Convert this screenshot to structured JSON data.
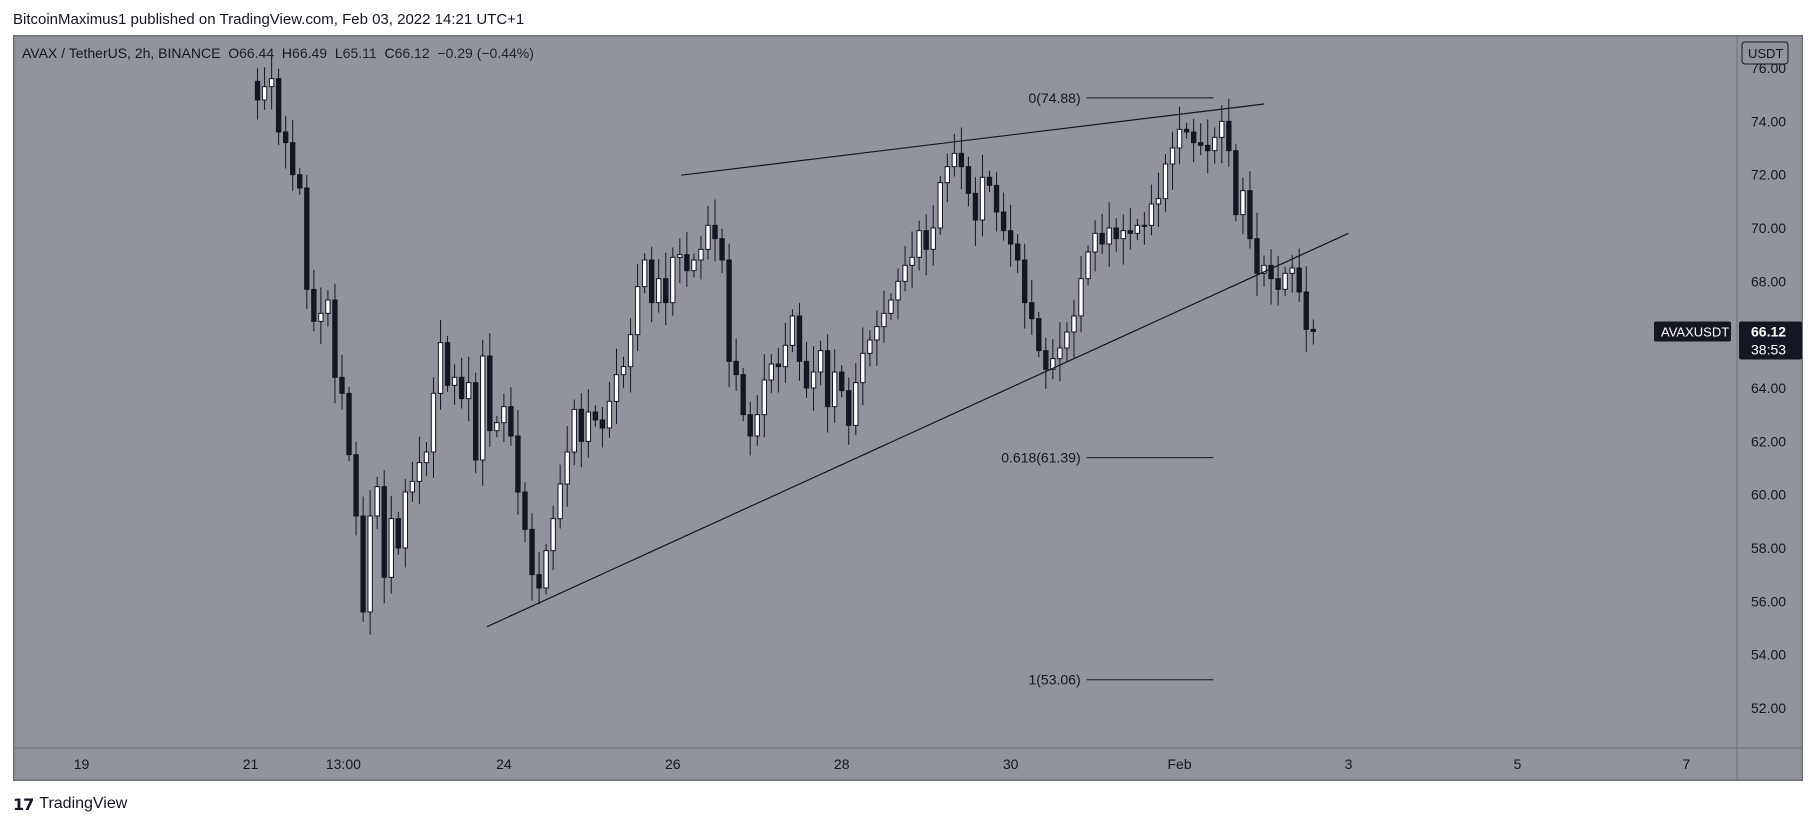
{
  "header": {
    "publisher_line": "BitcoinMaximus1 published on TradingView.com, Feb 03, 2022 14:21 UTC+1"
  },
  "legend": {
    "symbol": "AVAX / TetherUS, 2h, BINANCE",
    "open_label": "O",
    "open": "66.44",
    "high_label": "H",
    "high": "66.49",
    "low_label": "L",
    "low": "65.11",
    "close_label": "C",
    "close": "66.12",
    "change": "−0.29 (−0.44%)"
  },
  "price_scale": {
    "currency": "USDT",
    "last_price_label": "AVAXUSDT",
    "last_price": "66.12",
    "countdown": "38:53"
  },
  "footer": {
    "brand": "TradingView",
    "logo_glyph": "17"
  },
  "colors": {
    "background": "#92949c",
    "candle_up": "#ffffff",
    "candle_down": "#131722",
    "line": "#131722"
  },
  "chart_data": {
    "type": "candlestick",
    "ylim": [
      50.5,
      77.2
    ],
    "y_ticks": [
      "76.00",
      "74.00",
      "72.00",
      "70.00",
      "68.00",
      "66.00",
      "64.00",
      "62.00",
      "60.00",
      "58.00",
      "56.00",
      "54.00",
      "52.00"
    ],
    "x_ticks": [
      {
        "label": "19",
        "day": 19
      },
      {
        "label": "21",
        "day": 21
      },
      {
        "label": "13:00",
        "day": 22.1
      },
      {
        "label": "24",
        "day": 24
      },
      {
        "label": "26",
        "day": 26
      },
      {
        "label": "28",
        "day": 28
      },
      {
        "label": "30",
        "day": 30
      },
      {
        "label": "Feb",
        "day": 32
      },
      {
        "label": "3",
        "day": 34
      },
      {
        "label": "5",
        "day": 36
      },
      {
        "label": "7",
        "day": 38
      }
    ],
    "xlim_days": [
      18.2,
      38.6
    ],
    "candles_start_day": 21.0,
    "candle_interval_hours": 2,
    "closes": [
      75.5,
      74.8,
      75.3,
      75.6,
      73.6,
      73.2,
      72.0,
      71.5,
      67.7,
      66.5,
      66.8,
      67.3,
      64.4,
      63.8,
      61.5,
      59.2,
      55.6,
      59.2,
      60.3,
      56.9,
      59.1,
      58.0,
      60.1,
      60.5,
      61.2,
      61.6,
      63.8,
      65.7,
      64.1,
      64.4,
      63.6,
      64.2,
      61.3,
      65.2,
      62.4,
      62.7,
      63.3,
      62.2,
      60.1,
      58.7,
      57.0,
      56.5,
      57.9,
      59.1,
      60.4,
      61.6,
      63.2,
      62.0,
      63.1,
      62.8,
      62.5,
      63.5,
      64.5,
      64.8,
      66.0,
      67.8,
      68.8,
      67.2,
      68.1,
      67.2,
      68.9,
      69.0,
      68.4,
      68.8,
      69.2,
      70.1,
      69.6,
      68.8,
      65.0,
      64.5,
      63.0,
      62.2,
      63.0,
      64.3,
      64.9,
      64.8,
      65.6,
      66.7,
      65.0,
      64.0,
      64.6,
      65.4,
      63.3,
      64.6,
      63.9,
      62.6,
      64.2,
      65.3,
      65.8,
      66.3,
      66.8,
      67.3,
      68.0,
      68.6,
      68.9,
      69.9,
      69.2,
      70.0,
      71.7,
      72.3,
      72.8,
      72.3,
      71.3,
      70.3,
      71.9,
      71.6,
      70.6,
      69.9,
      69.4,
      68.8,
      67.2,
      66.6,
      65.4,
      64.7,
      65.1,
      65.5,
      66.1,
      66.7,
      68.1,
      69.1,
      69.8,
      69.4,
      70.0,
      69.6,
      69.9,
      69.8,
      70.1,
      70.1,
      70.9,
      71.1,
      72.4,
      73.0,
      73.7,
      73.6,
      73.2,
      73.1,
      72.9,
      73.4,
      74.0,
      72.9,
      70.5,
      71.4,
      69.6,
      68.3,
      68.6,
      68.1,
      67.7,
      68.3,
      68.5,
      67.6,
      66.2,
      66.12
    ],
    "fib_levels": [
      {
        "label": "0(74.88)",
        "price": 74.88
      },
      {
        "label": "0.618(61.39)",
        "price": 61.39
      },
      {
        "label": "1(53.06)",
        "price": 53.06
      }
    ],
    "fib_x_days": [
      30.9,
      32.4
    ],
    "trendlines": [
      {
        "name": "",
        "from": {
          "day": 26.1,
          "price": 71.98
        },
        "to": {
          "day": 33.0,
          "price": 74.65
        }
      },
      {
        "name": "",
        "from": {
          "day": 23.8,
          "price": 55.05
        },
        "to": {
          "day": 34.0,
          "price": 69.8
        }
      }
    ]
  }
}
